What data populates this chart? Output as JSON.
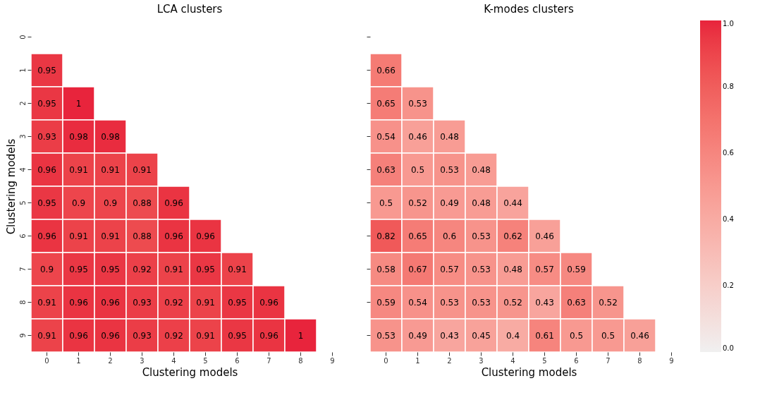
{
  "chart_data": [
    {
      "type": "heatmap",
      "title": "LCA clusters",
      "xlabel": "Clustering models",
      "ylabel": "Clustering models",
      "data_labels": true,
      "categories": [
        "0",
        "1",
        "2",
        "3",
        "4",
        "5",
        "6",
        "7",
        "8",
        "9"
      ],
      "y_categories": [
        "0",
        "1",
        "2",
        "3",
        "4",
        "5",
        "6",
        "7",
        "8",
        "9"
      ],
      "cells": [
        [
          null,
          null,
          null,
          null,
          null,
          null,
          null,
          null,
          null,
          null
        ],
        [
          0.95,
          null,
          null,
          null,
          null,
          null,
          null,
          null,
          null,
          null
        ],
        [
          0.95,
          1,
          null,
          null,
          null,
          null,
          null,
          null,
          null,
          null
        ],
        [
          0.93,
          0.98,
          0.98,
          null,
          null,
          null,
          null,
          null,
          null,
          null
        ],
        [
          0.96,
          0.91,
          0.91,
          0.91,
          null,
          null,
          null,
          null,
          null,
          null
        ],
        [
          0.95,
          0.9,
          0.9,
          0.88,
          0.96,
          null,
          null,
          null,
          null,
          null
        ],
        [
          0.96,
          0.91,
          0.91,
          0.88,
          0.96,
          0.96,
          null,
          null,
          null,
          null
        ],
        [
          0.9,
          0.95,
          0.95,
          0.92,
          0.91,
          0.95,
          0.91,
          null,
          null,
          null
        ],
        [
          0.91,
          0.96,
          0.96,
          0.93,
          0.92,
          0.91,
          0.95,
          0.96,
          null,
          null
        ],
        [
          0.91,
          0.96,
          0.96,
          0.93,
          0.92,
          0.91,
          0.95,
          0.96,
          1,
          null
        ]
      ]
    },
    {
      "type": "heatmap",
      "title": "K-modes clusters",
      "xlabel": "Clustering models",
      "data_labels": true,
      "tick_labels": "x",
      "categories": [
        "0",
        "1",
        "2",
        "3",
        "4",
        "5",
        "6",
        "7",
        "8",
        "9"
      ],
      "y_categories": [
        "0",
        "1",
        "2",
        "3",
        "4",
        "5",
        "6",
        "7",
        "8",
        "9"
      ],
      "cells": [
        [
          null,
          null,
          null,
          null,
          null,
          null,
          null,
          null,
          null,
          null
        ],
        [
          0.66,
          null,
          null,
          null,
          null,
          null,
          null,
          null,
          null,
          null
        ],
        [
          0.65,
          0.53,
          null,
          null,
          null,
          null,
          null,
          null,
          null,
          null
        ],
        [
          0.54,
          0.46,
          0.48,
          null,
          null,
          null,
          null,
          null,
          null,
          null
        ],
        [
          0.63,
          0.5,
          0.53,
          0.48,
          null,
          null,
          null,
          null,
          null,
          null
        ],
        [
          0.5,
          0.52,
          0.49,
          0.48,
          0.44,
          null,
          null,
          null,
          null,
          null
        ],
        [
          0.82,
          0.65,
          0.6,
          0.53,
          0.62,
          0.46,
          null,
          null,
          null,
          null
        ],
        [
          0.58,
          0.67,
          0.57,
          0.53,
          0.48,
          0.57,
          0.59,
          null,
          null,
          null
        ],
        [
          0.59,
          0.54,
          0.53,
          0.53,
          0.52,
          0.43,
          0.63,
          0.52,
          null,
          null
        ],
        [
          0.53,
          0.49,
          0.43,
          0.45,
          0.4,
          0.61,
          0.5,
          0.5,
          0.46,
          null
        ]
      ],
      "clim": [
        0,
        1
      ],
      "cticks": [
        {
          "value": 0,
          "label": "0.0"
        },
        {
          "value": 0.2,
          "label": "0.2"
        },
        {
          "value": 0.4,
          "label": "0.4"
        },
        {
          "value": 0.6,
          "label": "0.6"
        },
        {
          "value": 0.8,
          "label": "0.8"
        },
        {
          "value": 1,
          "label": "1.0"
        }
      ]
    }
  ]
}
